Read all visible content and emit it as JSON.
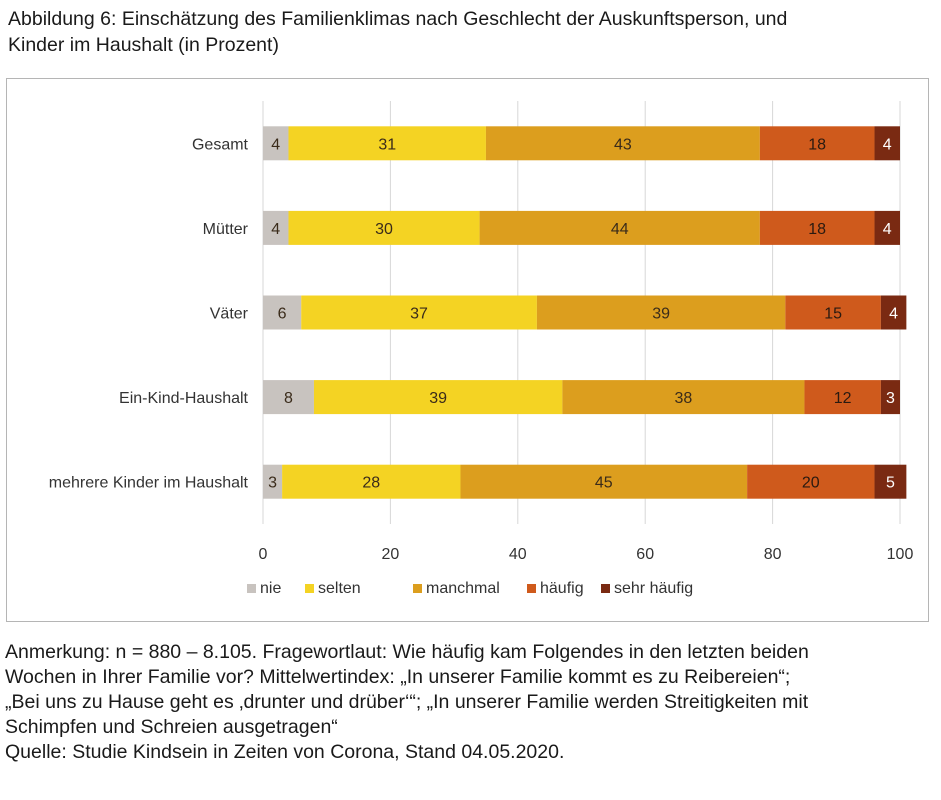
{
  "title": {
    "line1": "Abbildung 6: Einschätzung des Familienklimas nach Geschlecht der Auskunftsperson, und",
    "line2": "Kinder im Haushalt (in Prozent)"
  },
  "chart_data": {
    "type": "bar",
    "orientation": "horizontal",
    "stacked": true,
    "categories": [
      "Gesamt",
      "Mütter",
      "Väter",
      "Ein-Kind-Haushalt",
      "mehrere Kinder im Haushalt"
    ],
    "series": [
      {
        "name": "nie",
        "color": "#c8c3bf",
        "values": [
          4,
          4,
          6,
          8,
          3
        ]
      },
      {
        "name": "selten",
        "color": "#f4d323",
        "values": [
          31,
          30,
          37,
          39,
          28
        ]
      },
      {
        "name": "manchmal",
        "color": "#dc9e1e",
        "values": [
          43,
          44,
          39,
          38,
          45
        ]
      },
      {
        "name": "häufig",
        "color": "#cf5a1c",
        "values": [
          18,
          18,
          15,
          12,
          20
        ]
      },
      {
        "name": "sehr häufig",
        "color": "#7a2a12",
        "values": [
          4,
          4,
          4,
          3,
          5
        ]
      }
    ],
    "xlim": [
      0,
      100
    ],
    "xticks": [
      "0",
      "20",
      "40",
      "60",
      "80",
      "100"
    ],
    "legend_position": "bottom",
    "grid": true
  },
  "note": {
    "line1": "Anmerkung: n = 880 – 8.105. Fragewortlaut: Wie häufig kam Folgendes in den letzten beiden",
    "line2": "Wochen in Ihrer Familie vor? Mittelwertindex: „In unserer Familie kommt es zu Reibereien“;",
    "line3": "„Bei uns zu Hause geht es ‚drunter und drüber‘“; „In unserer Familie werden Streitigkeiten mit",
    "line4": "Schimpfen und Schreien ausgetragen“",
    "source": "Quelle: Studie Kindsein in Zeiten von Corona, Stand 04.05.2020."
  }
}
